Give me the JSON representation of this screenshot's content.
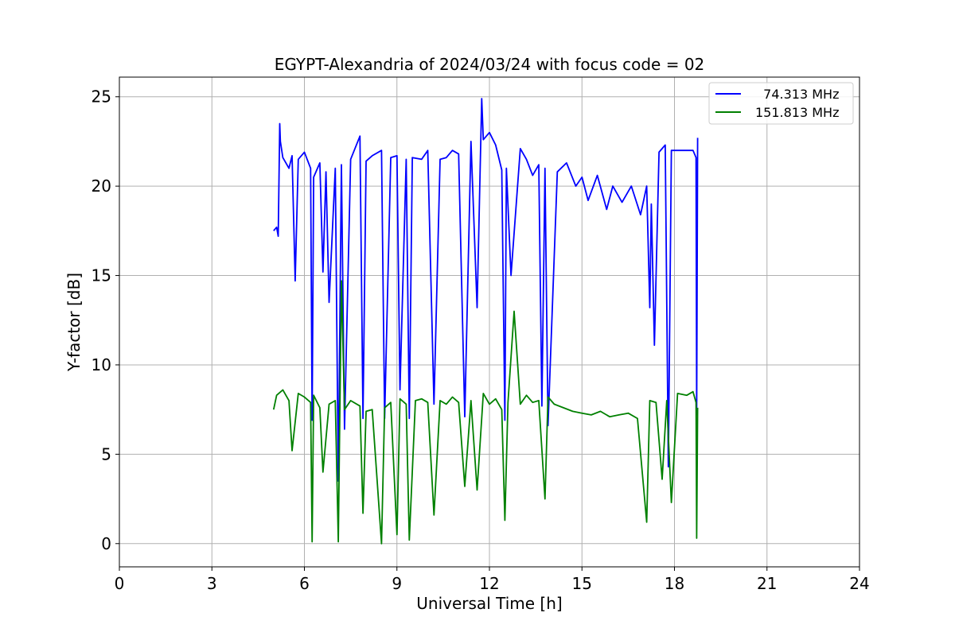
{
  "chart_data": {
    "type": "line",
    "title": "EGYPT-Alexandria of 2024/03/24 with focus code = 02",
    "xlabel": "Universal Time [h]",
    "ylabel": "Y-factor [dB]",
    "xlim": [
      0,
      24
    ],
    "ylim": [
      -1.3,
      26.1
    ],
    "xticks": [
      0,
      3,
      6,
      9,
      12,
      15,
      18,
      21,
      24
    ],
    "yticks": [
      0,
      5,
      10,
      15,
      20,
      25
    ],
    "grid": true,
    "legend_position": "top-right",
    "series": [
      {
        "name": "  74.313 MHz",
        "color": "#0000ff",
        "x": [
          5.0,
          5.1,
          5.15,
          5.2,
          5.22,
          5.3,
          5.5,
          5.6,
          5.7,
          5.8,
          6.0,
          6.2,
          6.25,
          6.3,
          6.5,
          6.6,
          6.7,
          6.8,
          7.0,
          7.1,
          7.2,
          7.3,
          7.5,
          7.8,
          7.9,
          8.0,
          8.2,
          8.5,
          8.6,
          8.8,
          9.0,
          9.1,
          9.3,
          9.4,
          9.5,
          9.8,
          10.0,
          10.2,
          10.4,
          10.6,
          10.8,
          11.0,
          11.2,
          11.4,
          11.6,
          11.75,
          11.8,
          12.0,
          12.2,
          12.4,
          12.5,
          12.55,
          12.7,
          13.0,
          13.2,
          13.4,
          13.6,
          13.7,
          13.8,
          13.9,
          14.2,
          14.5,
          14.8,
          15.0,
          15.2,
          15.5,
          15.8,
          16.0,
          16.3,
          16.6,
          16.9,
          17.1,
          17.2,
          17.25,
          17.35,
          17.5,
          17.7,
          17.8,
          17.9,
          18.0,
          18.3,
          18.6,
          18.7,
          18.72,
          18.75
        ],
        "y": [
          17.5,
          17.7,
          17.2,
          23.5,
          22.5,
          21.6,
          21.0,
          21.7,
          14.7,
          21.5,
          21.9,
          21.0,
          6.9,
          20.5,
          21.3,
          15.2,
          20.8,
          13.5,
          21.0,
          3.5,
          21.2,
          6.4,
          21.5,
          22.8,
          7.0,
          21.4,
          21.7,
          22.0,
          7.0,
          21.6,
          21.7,
          8.6,
          21.5,
          7.0,
          21.6,
          21.5,
          22.0,
          7.8,
          21.5,
          21.6,
          22.0,
          21.8,
          7.1,
          22.5,
          13.2,
          24.9,
          22.6,
          23.0,
          22.3,
          20.9,
          6.9,
          21.0,
          15.0,
          22.1,
          21.5,
          20.6,
          21.2,
          7.7,
          21.0,
          6.6,
          20.8,
          21.3,
          20.0,
          20.5,
          19.2,
          20.6,
          18.7,
          20.0,
          19.1,
          20.0,
          18.4,
          20.0,
          13.2,
          19.0,
          11.1,
          21.9,
          22.3,
          4.3,
          22.0,
          22.0,
          22.0,
          22.0,
          21.6,
          7.2,
          22.7
        ]
      },
      {
        "name": "151.813 MHz",
        "color": "#008000",
        "x": [
          5.0,
          5.1,
          5.3,
          5.5,
          5.6,
          5.8,
          6.0,
          6.2,
          6.25,
          6.3,
          6.5,
          6.6,
          6.8,
          7.0,
          7.1,
          7.2,
          7.3,
          7.5,
          7.8,
          7.9,
          8.0,
          8.2,
          8.5,
          8.6,
          8.8,
          9.0,
          9.1,
          9.3,
          9.4,
          9.6,
          9.8,
          10.0,
          10.2,
          10.4,
          10.6,
          10.8,
          11.0,
          11.2,
          11.4,
          11.6,
          11.8,
          12.0,
          12.2,
          12.4,
          12.5,
          12.6,
          12.8,
          13.0,
          13.2,
          13.4,
          13.6,
          13.8,
          13.9,
          14.1,
          14.4,
          14.7,
          15.0,
          15.3,
          15.6,
          15.9,
          16.2,
          16.5,
          16.8,
          17.1,
          17.2,
          17.4,
          17.6,
          17.75,
          17.9,
          18.1,
          18.4,
          18.6,
          18.7,
          18.72,
          18.75
        ],
        "y": [
          7.5,
          8.3,
          8.6,
          8.0,
          5.2,
          8.4,
          8.2,
          7.9,
          0.1,
          8.3,
          7.6,
          4.0,
          7.8,
          8.0,
          0.1,
          14.7,
          7.5,
          8.0,
          7.7,
          1.7,
          7.4,
          7.5,
          0.0,
          7.6,
          7.9,
          0.5,
          8.1,
          7.8,
          0.2,
          8.0,
          8.1,
          7.9,
          1.6,
          8.0,
          7.8,
          8.2,
          7.9,
          3.2,
          8.0,
          3.0,
          8.4,
          7.8,
          8.1,
          7.5,
          1.3,
          7.9,
          13.0,
          7.8,
          8.3,
          7.9,
          8.0,
          2.5,
          8.2,
          7.8,
          7.6,
          7.4,
          7.3,
          7.2,
          7.4,
          7.1,
          7.2,
          7.3,
          7.0,
          1.2,
          8.0,
          7.9,
          3.6,
          8.0,
          2.3,
          8.4,
          8.3,
          8.5,
          7.9,
          0.3,
          7.6
        ]
      }
    ]
  }
}
